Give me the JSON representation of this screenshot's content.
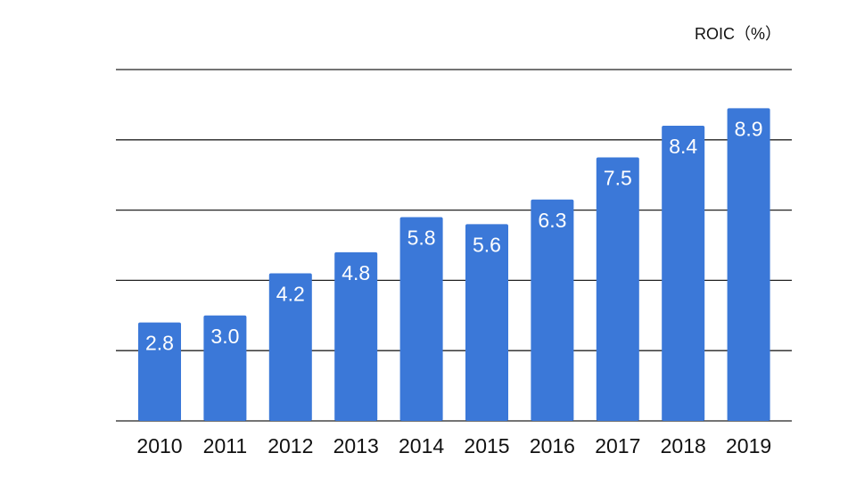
{
  "chart_data": {
    "type": "bar",
    "unit_label": "ROIC（%）",
    "categories": [
      "2010",
      "2011",
      "2012",
      "2013",
      "2014",
      "2015",
      "2016",
      "2017",
      "2018",
      "2019"
    ],
    "series": [
      {
        "values": [
          2.8,
          3.0,
          4.2,
          4.8,
          5.8,
          5.6,
          6.3,
          7.5,
          8.4,
          8.9
        ]
      }
    ],
    "ylim": [
      0,
      10
    ],
    "grid": true,
    "data_labels": true,
    "colors": {
      "bar": "#3b78d8",
      "grid": "#222222",
      "data_label": "#ffffff",
      "tick_label": "#111111"
    }
  }
}
